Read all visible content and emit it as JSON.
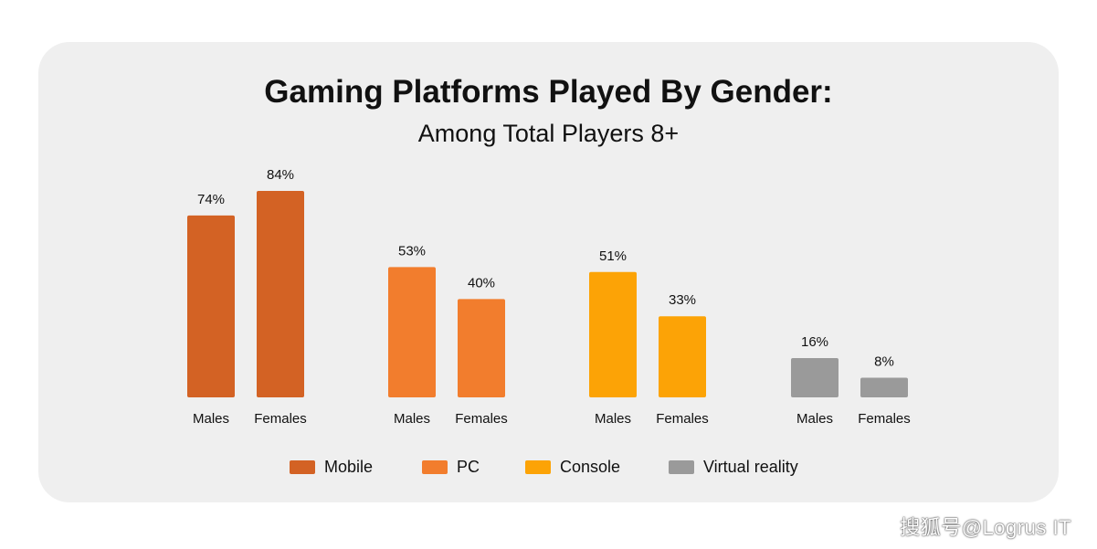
{
  "chart_data": {
    "type": "bar",
    "title": "Gaming Platforms Played By Gender:",
    "subtitle": "Among Total Players 8+",
    "bar_categories": [
      "Males",
      "Females"
    ],
    "groups": [
      {
        "name": "Mobile",
        "color": "#d36224",
        "values": [
          74,
          84
        ],
        "labels": [
          "74%",
          "84%"
        ]
      },
      {
        "name": "PC",
        "color": "#f27d2d",
        "values": [
          53,
          40
        ],
        "labels": [
          "53%",
          "40%"
        ]
      },
      {
        "name": "Console",
        "color": "#fca306",
        "values": [
          51,
          33
        ],
        "labels": [
          "51%",
          "33%"
        ]
      },
      {
        "name": "Virtual reality",
        "color": "#9a9a9a",
        "values": [
          16,
          8
        ],
        "labels": [
          "16%",
          "8%"
        ]
      }
    ],
    "unit": "%",
    "ylim": [
      0,
      84
    ],
    "grid": false,
    "legend_position": "bottom-center"
  },
  "legend": [
    {
      "label": "Mobile",
      "color": "#d36224"
    },
    {
      "label": "PC",
      "color": "#f27d2d"
    },
    {
      "label": "Console",
      "color": "#fca306"
    },
    {
      "label": "Virtual reality",
      "color": "#9a9a9a"
    }
  ],
  "watermark": "搜狐号@Logrus IT"
}
